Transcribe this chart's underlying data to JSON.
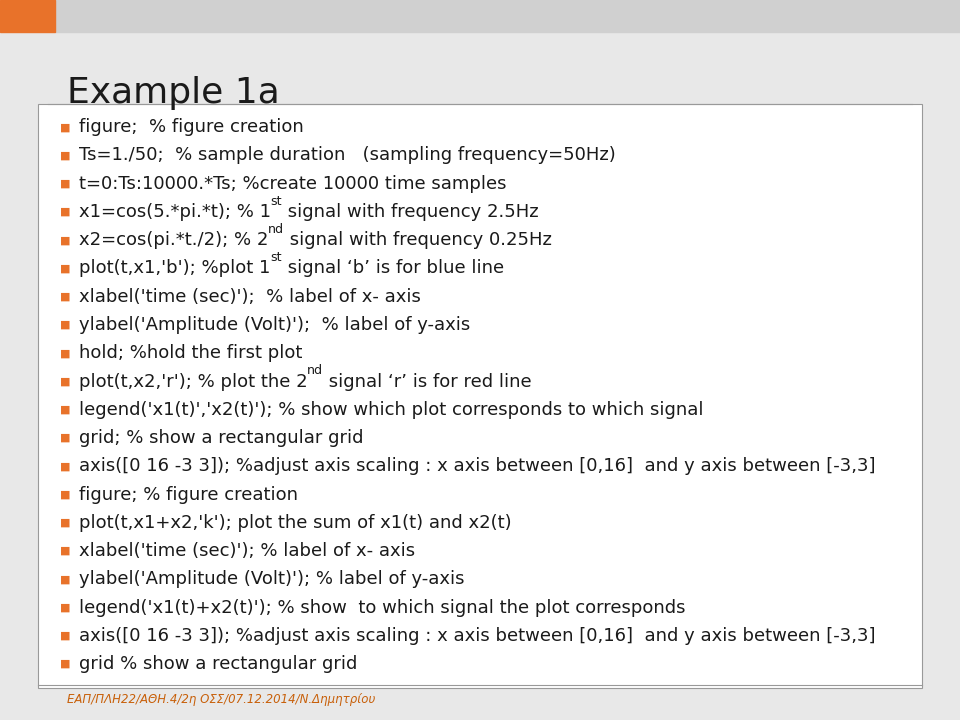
{
  "title": "Example 1a",
  "title_fontsize": 26,
  "title_color": "#1a1a1a",
  "background_color": "#e8e8e8",
  "content_background": "#ffffff",
  "orange_accent": "#e8722a",
  "bullet_color": "#e8722a",
  "footer_color": "#c8600a",
  "footer_text": "ΕΑΠ/ΠΛΗ22/ΑΘΗ.4/2η ΟΣΣ/07.12.2014/Ν.Δημητρίου",
  "bullet_char": "■",
  "body_fontsize": 13.0,
  "body_color": "#1a1a1a",
  "border_color": "#999999",
  "lines": [
    [
      "figure;  % figure creation",
      null,
      null
    ],
    [
      "Ts=1./50;  % sample duration   (sampling frequency=50Hz)",
      null,
      null
    ],
    [
      "t=0:Ts:10000.*Ts; %create 10000 time samples",
      null,
      null
    ],
    [
      "x1=cos(5.*pi.*t); % 1",
      "st",
      " signal with frequency 2.5Hz"
    ],
    [
      "x2=cos(pi.*t./2); % 2",
      "nd",
      " signal with frequency 0.25Hz"
    ],
    [
      "plot(t,x1,'b'); %plot 1",
      "st",
      " signal ‘b’ is for blue line"
    ],
    [
      "xlabel('time (sec)');  % label of x- axis",
      null,
      null
    ],
    [
      "ylabel('Amplitude (Volt)');  % label of y-axis",
      null,
      null
    ],
    [
      "hold; %hold the first plot",
      null,
      null
    ],
    [
      "plot(t,x2,'r'); % plot the 2",
      "nd",
      " signal ‘r’ is for red line"
    ],
    [
      "legend('x1(t)','x2(t)'); % show which plot corresponds to which signal",
      null,
      null
    ],
    [
      "grid; % show a rectangular grid",
      null,
      null
    ],
    [
      "axis([0 16 -3 3]); %adjust axis scaling : x axis between [0,16]  and y axis between [-3,3]",
      null,
      null
    ],
    [
      "figure; % figure creation",
      null,
      null
    ],
    [
      "plot(t,x1+x2,'k'); plot the sum of x1(t) and x2(t)",
      null,
      null
    ],
    [
      "xlabel('time (sec)'); % label of x- axis",
      null,
      null
    ],
    [
      "ylabel('Amplitude (Volt)'); % label of y-axis",
      null,
      null
    ],
    [
      "legend('x1(t)+x2(t)'); % show  to which signal the plot corresponds",
      null,
      null
    ],
    [
      "axis([0 16 -3 3]); %adjust axis scaling : x axis between [0,16]  and y axis between [-3,3]",
      null,
      null
    ],
    [
      "grid % show a rectangular grid",
      null,
      null
    ]
  ]
}
